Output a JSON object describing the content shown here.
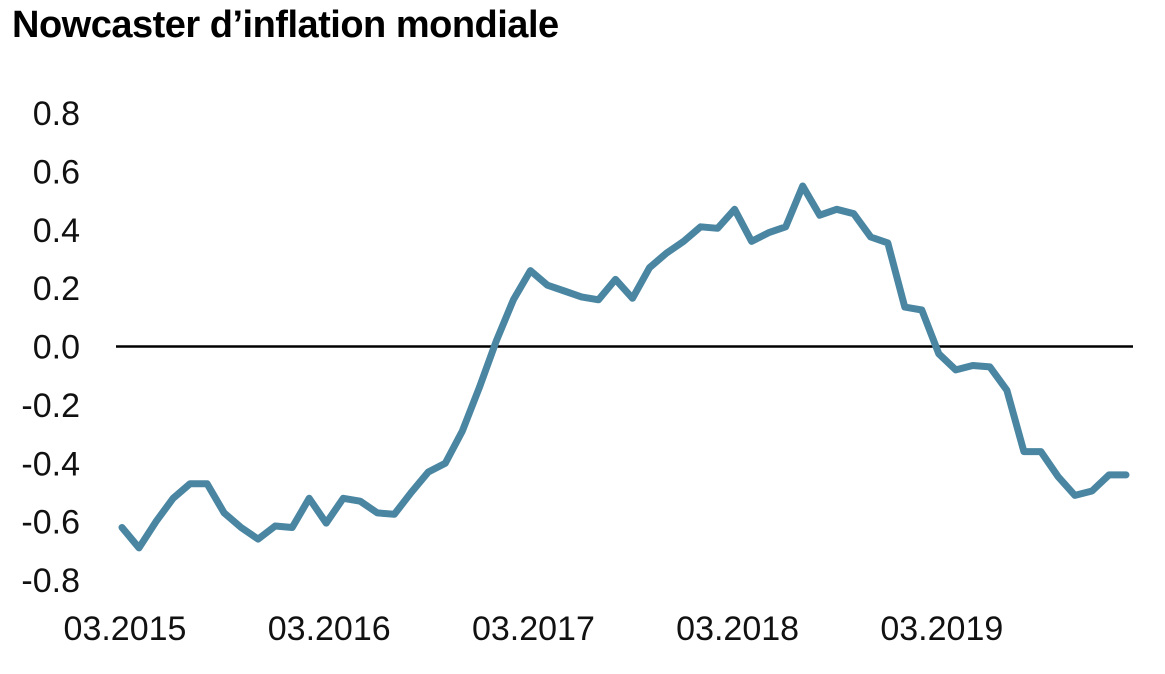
{
  "title": "Nowcaster d’inflation mondiale",
  "chart_data": {
    "type": "line",
    "title": "Nowcaster d’inflation mondiale",
    "xlabel": "",
    "ylabel": "",
    "ylim": [
      -0.8,
      0.8
    ],
    "y_ticks": [
      "0.8",
      "0.6",
      "0.4",
      "0.2",
      "0.0",
      "-0.2",
      "-0.4",
      "-0.6",
      "-0.8"
    ],
    "y_tick_values": [
      0.8,
      0.6,
      0.4,
      0.2,
      0.0,
      -0.2,
      -0.4,
      -0.6,
      -0.8
    ],
    "x_ticks": [
      "03.2015",
      "03.2016",
      "03.2017",
      "03.2018",
      "03.2019"
    ],
    "zero_line": true,
    "grid": false,
    "series_color": "#4a86a2",
    "x": [
      "03.2015",
      "04.2015",
      "05.2015",
      "06.2015",
      "07.2015",
      "08.2015",
      "09.2015",
      "10.2015",
      "11.2015",
      "12.2015",
      "01.2016",
      "02.2016",
      "03.2016",
      "04.2016",
      "05.2016",
      "06.2016",
      "07.2016",
      "08.2016",
      "09.2016",
      "10.2016",
      "11.2016",
      "12.2016",
      "01.2017",
      "02.2017",
      "03.2017",
      "04.2017",
      "05.2017",
      "06.2017",
      "07.2017",
      "08.2017",
      "09.2017",
      "10.2017",
      "11.2017",
      "12.2017",
      "01.2018",
      "02.2018",
      "03.2018",
      "04.2018",
      "05.2018",
      "06.2018",
      "07.2018",
      "08.2018",
      "09.2018",
      "10.2018",
      "11.2018",
      "12.2018",
      "01.2019",
      "02.2019",
      "03.2019",
      "04.2019",
      "05.2019",
      "06.2019",
      "07.2019",
      "08.2019",
      "09.2019",
      "10.2019",
      "11.2019",
      "12.2019",
      "01.2020",
      "02.2020"
    ],
    "series": [
      {
        "values": [
          -0.62,
          -0.69,
          -0.6,
          -0.52,
          -0.47,
          -0.47,
          -0.57,
          -0.62,
          -0.66,
          -0.615,
          -0.62,
          -0.52,
          -0.605,
          -0.52,
          -0.53,
          -0.57,
          -0.575,
          -0.5,
          -0.43,
          -0.4,
          -0.29,
          -0.14,
          0.02,
          0.16,
          0.26,
          0.21,
          0.19,
          0.17,
          0.16,
          0.23,
          0.165,
          0.27,
          0.32,
          0.36,
          0.41,
          0.405,
          0.47,
          0.36,
          0.39,
          0.41,
          0.55,
          0.45,
          0.47,
          0.455,
          0.375,
          0.355,
          0.135,
          0.125,
          -0.025,
          -0.08,
          -0.065,
          -0.07,
          -0.15,
          -0.36,
          -0.36,
          -0.445,
          -0.51,
          -0.495,
          -0.44,
          -0.44
        ]
      }
    ]
  }
}
